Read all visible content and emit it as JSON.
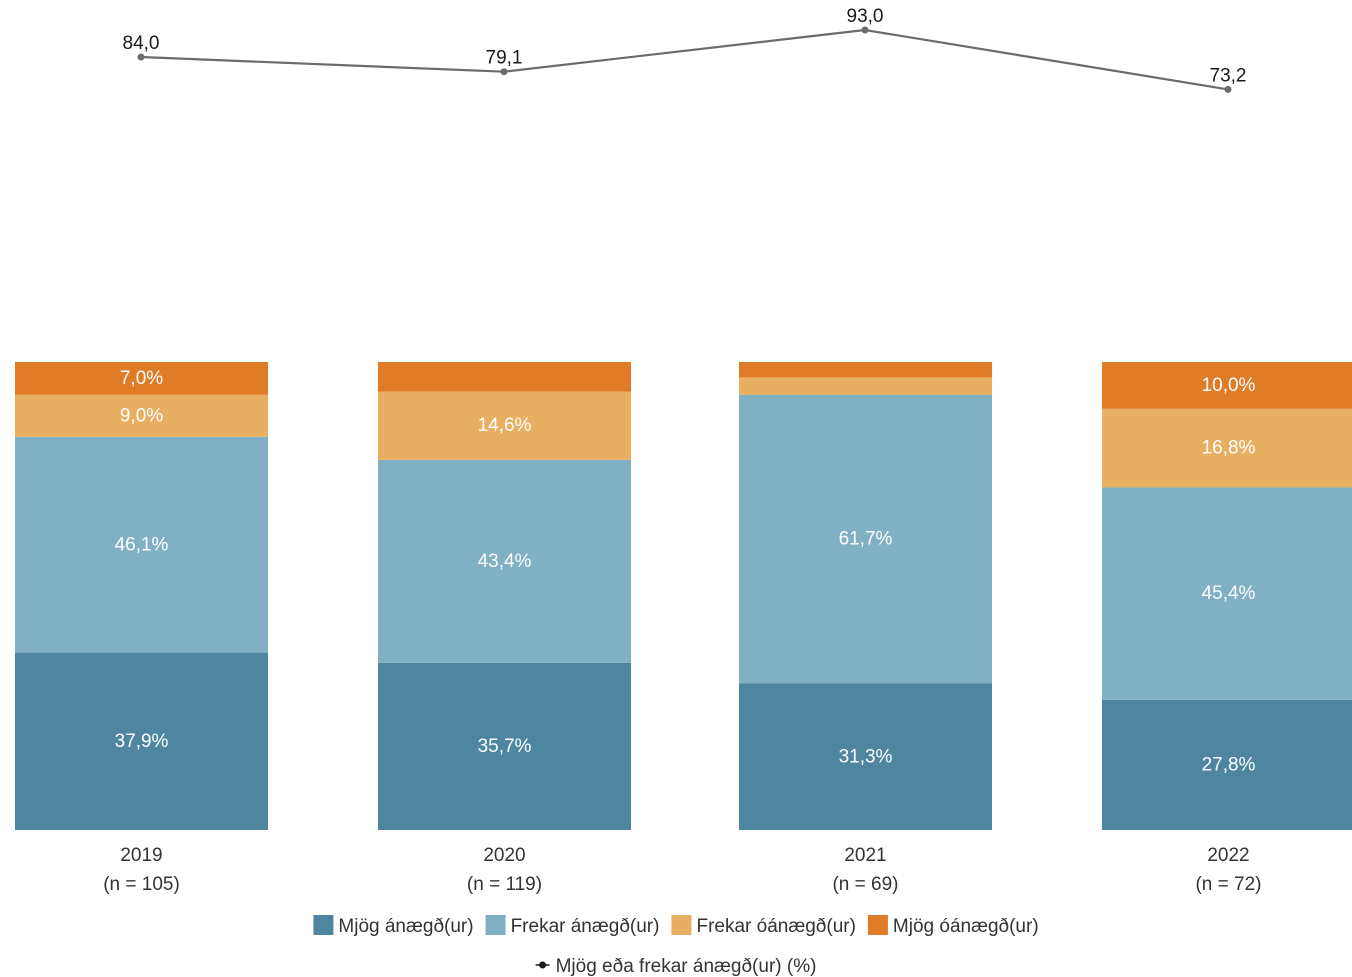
{
  "chart_data": {
    "type": "bar",
    "stacked": true,
    "categories": [
      "2019",
      "2020",
      "2021",
      "2022"
    ],
    "category_notes": [
      "(n = 105)",
      "(n = 119)",
      "(n = 69)",
      "(n = 72)"
    ],
    "series": [
      {
        "name": "Mjög ánægð(ur)",
        "color": "#4e86a0",
        "values": [
          37.9,
          35.7,
          31.3,
          27.8
        ],
        "labels": [
          "37,9%",
          "35,7%",
          "31,3%",
          "27,8%"
        ]
      },
      {
        "name": "Frekar ánægð(ur)",
        "color": "#81afc4",
        "values": [
          46.1,
          43.4,
          61.7,
          45.4
        ],
        "labels": [
          "46,1%",
          "43,4%",
          "61,7%",
          "45,4%"
        ]
      },
      {
        "name": "Frekar óánægð(ur)",
        "color": "#e8ae62",
        "values": [
          9.0,
          14.6,
          3.7,
          16.8
        ],
        "labels": [
          "9,0%",
          "14,6%",
          "",
          "16,8%"
        ]
      },
      {
        "name": "Mjög óánægð(ur)",
        "color": "#e07b28",
        "values": [
          7.0,
          6.3,
          3.3,
          10.0
        ],
        "labels": [
          "7,0%",
          "",
          "",
          "10,0%"
        ]
      }
    ],
    "line": {
      "name": "Mjög eða frekar ánægð(ur) (%)",
      "color": "#6b6b6b",
      "values": [
        84.0,
        79.1,
        93.0,
        73.2
      ],
      "labels": [
        "84,0",
        "79,1",
        "93,0",
        "73,2"
      ]
    },
    "ylim": [
      0,
      100
    ],
    "legend_position": "bottom",
    "grid": false
  }
}
